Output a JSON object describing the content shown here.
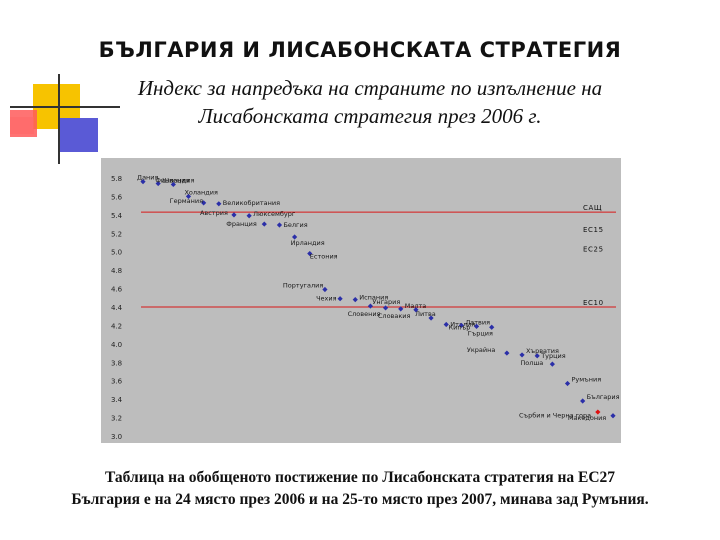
{
  "title": "БЪЛГАРИЯ И ЛИСАБОНСКАТА СТРАТЕГИЯ",
  "subtitle_line1": "Индекс за напредъка на страните по изпълнение на",
  "subtitle_line2": "Лисабонската стратегия през 2006 г.",
  "caption_line1": "Таблица на обобщеното постижение по Лисабонската стратегия на ЕС27",
  "caption_line2": "България е на 24 място през 2006 и на 25-то място през 2007, минава зад Румъния.",
  "colors": {
    "point": "#2b2fa8",
    "highlight_point": "#e01010",
    "reference_line": "#d81818",
    "panel_background": "#bdbdbd"
  },
  "chart_data": {
    "type": "scatter",
    "title": "",
    "xlabel": "",
    "ylabel": "",
    "ylim": [
      3.0,
      5.8
    ],
    "y_ticks": [
      "5.8",
      "5.6",
      "5.4",
      "5.2",
      "5.0",
      "4.8",
      "4.6",
      "4.4",
      "4.2",
      "4.0",
      "3.8",
      "3.6",
      "3.4",
      "3.2",
      "3.0"
    ],
    "y_ticks_as_printed": [
      "5.8",
      "5.6",
      "5.4",
      "5.2",
      "5.0",
      "4.8",
      "4.6",
      "4.4",
      "4.2",
      "4.0",
      "3.8",
      "3.6",
      "3.4",
      "3.2",
      "3.0"
    ],
    "grid": false,
    "points": [
      {
        "label": "Дания",
        "rank": 1,
        "y": 5.76
      },
      {
        "label": "Швеция",
        "rank": 2,
        "y": 5.74
      },
      {
        "label": "Финландия",
        "rank": 3,
        "y": 5.73
      },
      {
        "label": "Холандия",
        "rank": 4,
        "y": 5.6
      },
      {
        "label": "Германия",
        "rank": 5,
        "y": 5.53
      },
      {
        "label": "Великобритания",
        "rank": 6,
        "y": 5.52
      },
      {
        "label": "Австрия",
        "rank": 7,
        "y": 5.4
      },
      {
        "label": "Люксембург",
        "rank": 8,
        "y": 5.39
      },
      {
        "label": "Франция",
        "rank": 9,
        "y": 5.3
      },
      {
        "label": "Белгия",
        "rank": 10,
        "y": 5.29
      },
      {
        "label": "Ирландия",
        "rank": 11,
        "y": 5.16
      },
      {
        "label": "Естония",
        "rank": 12,
        "y": 4.98
      },
      {
        "label": "Португалия",
        "rank": 13,
        "y": 4.59
      },
      {
        "label": "Чехия",
        "rank": 14,
        "y": 4.49
      },
      {
        "label": "Испания",
        "rank": 15,
        "y": 4.48
      },
      {
        "label": "Унгария",
        "rank": 16,
        "y": 4.41
      },
      {
        "label": "Словения",
        "rank": 17,
        "y": 4.39
      },
      {
        "label": "Малта",
        "rank": 18,
        "y": 4.38
      },
      {
        "label": "Словакия",
        "rank": 19,
        "y": 4.37
      },
      {
        "label": "Литва",
        "rank": 20,
        "y": 4.28
      },
      {
        "label": "Италия",
        "rank": 21,
        "y": 4.21
      },
      {
        "label": "Латвия",
        "rank": 22,
        "y": 4.2
      },
      {
        "label": "Кипър",
        "rank": 23,
        "y": 4.19
      },
      {
        "label": "Гърция",
        "rank": 24,
        "y": 4.18
      },
      {
        "label": "Украйна",
        "rank": 25,
        "y": 3.9
      },
      {
        "label": "Хърватия",
        "rank": 26,
        "y": 3.88
      },
      {
        "label": "Турция",
        "rank": 27,
        "y": 3.87
      },
      {
        "label": "Полша",
        "rank": 28,
        "y": 3.78
      },
      {
        "label": "Румъния",
        "rank": 29,
        "y": 3.57
      },
      {
        "label": "България",
        "rank": 30,
        "y": 3.38
      },
      {
        "label": "Македония",
        "rank": 31,
        "y": 3.26,
        "highlight": true
      },
      {
        "label": "Сърбия и Черна гора",
        "rank": 32,
        "y": 3.22
      }
    ],
    "reference_lines": [
      {
        "label": "САЩ",
        "y": 5.43
      },
      {
        "label": "ЕС15",
        "y": 5.19
      },
      {
        "label": "ЕС25",
        "y": 4.98
      },
      {
        "label": "ЕС10",
        "y": 4.4
      }
    ],
    "red_reference_lines": [
      "САЩ",
      "ЕС10"
    ]
  }
}
